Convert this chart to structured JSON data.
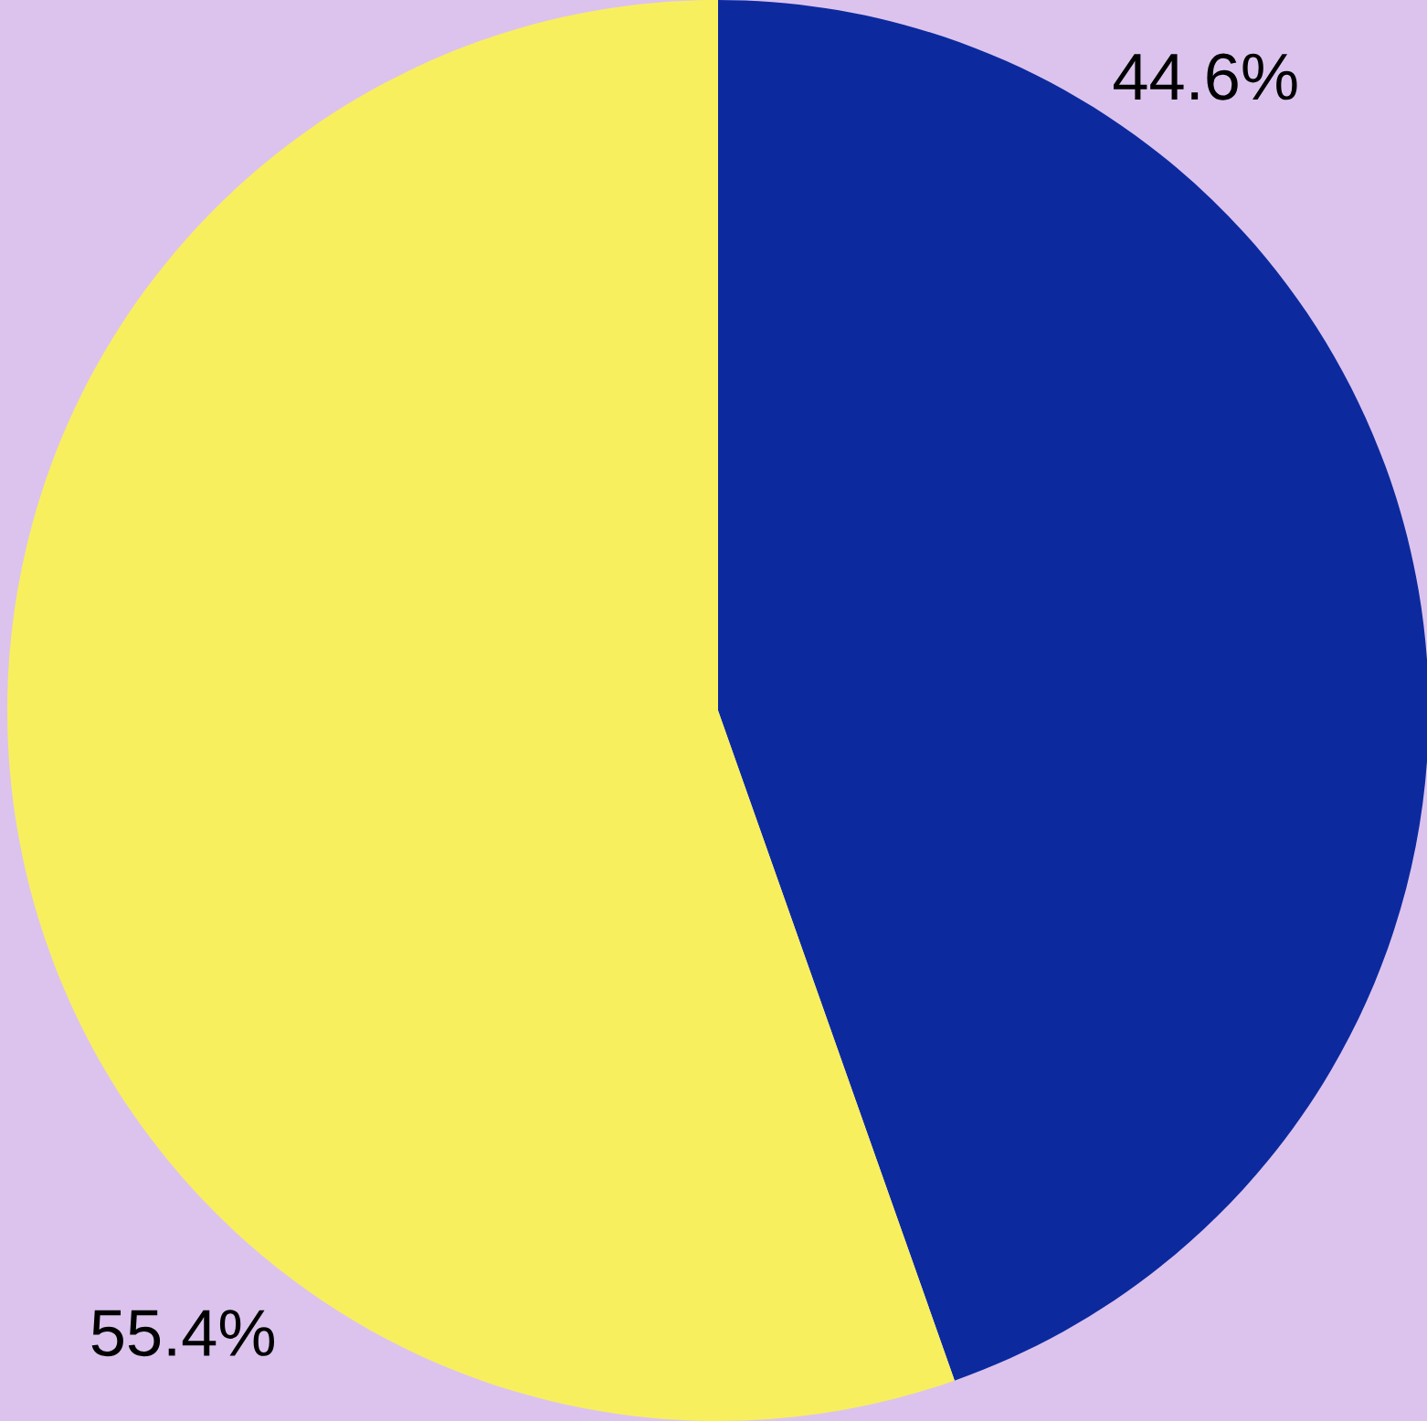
{
  "chart_data": {
    "type": "pie",
    "categories": [
      null,
      null
    ],
    "values": [
      44.6,
      55.4
    ],
    "colors": [
      "#0c2a9e",
      "#f8ef5f"
    ],
    "value_labels": [
      "44.6%",
      "55.4%"
    ],
    "legend": false
  }
}
